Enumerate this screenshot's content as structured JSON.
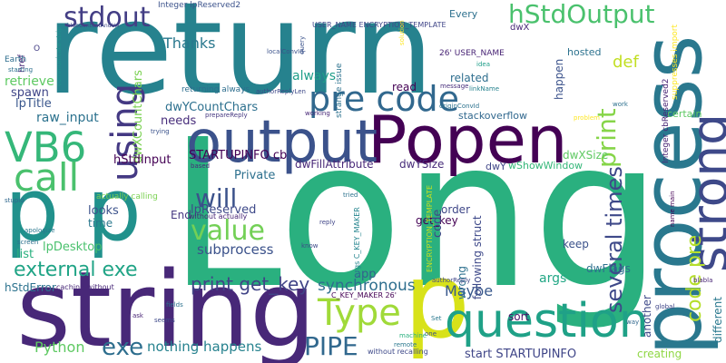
{
  "words": [
    {
      "text": "return",
      "color": "#26828e"
    },
    {
      "text": "Long",
      "color": "#2ab07f"
    },
    {
      "text": "string",
      "color": "#482878"
    },
    {
      "text": "process",
      "color": "#2a788e"
    },
    {
      "text": "Popen",
      "color": "#440154"
    },
    {
      "text": "output",
      "color": "#3b528b"
    },
    {
      "text": "strong",
      "color": "#3e4989"
    },
    {
      "text": "p p",
      "color": "#21918c"
    },
    {
      "text": "p",
      "color": "#d8e219"
    },
    {
      "text": "question",
      "color": "#1fa187"
    },
    {
      "text": "pre code",
      "color": "#31688e"
    },
    {
      "text": "VB6",
      "color": "#35b779"
    },
    {
      "text": "call",
      "color": "#4ac16d"
    },
    {
      "text": "using",
      "color": "#443983"
    },
    {
      "text": "stdout",
      "color": "#433e85"
    },
    {
      "text": "hStdOutput",
      "color": "#4ac16d"
    },
    {
      "text": "Type",
      "color": "#a0da39"
    },
    {
      "text": "value",
      "color": "#73d056"
    },
    {
      "text": "will",
      "color": "#3b528b"
    },
    {
      "text": "PIPE",
      "color": "#31688e"
    },
    {
      "text": "external exe",
      "color": "#20a486"
    },
    {
      "text": "print",
      "color": "#86d549"
    },
    {
      "text": "code pre",
      "color": "#b5de2b"
    },
    {
      "text": "several times",
      "color": "#3e4989"
    },
    {
      "text": "exe",
      "color": "#2e6e8e"
    },
    {
      "text": "print get_key",
      "color": "#414487"
    },
    {
      "text": "Python",
      "color": "#5ec962"
    },
    {
      "text": "nothing happens",
      "color": "#26828e"
    },
    {
      "text": "synchronous",
      "color": "#2e6e8e"
    },
    {
      "text": "subprocess",
      "color": "#3b528b"
    },
    {
      "text": "STARTUPINFO cb",
      "color": "#440154"
    },
    {
      "text": "start STARTUPINFO",
      "color": "#404688"
    },
    {
      "text": "Maybe",
      "color": "#38588c"
    },
    {
      "text": "Thanks",
      "color": "#2a788e"
    },
    {
      "text": "def",
      "color": "#c2df23"
    },
    {
      "text": "app",
      "color": "#34618d"
    },
    {
      "text": "always",
      "color": "#1f9e89"
    },
    {
      "text": "dwYCountChars",
      "color": "#2d708e"
    },
    {
      "text": "dwXCountChars",
      "color": "#7ad151"
    },
    {
      "text": "raw_input",
      "color": "#2c728e"
    },
    {
      "text": "retrieve",
      "color": "#5ec962"
    },
    {
      "text": "spawn",
      "color": "#404688"
    },
    {
      "text": "lpTitle",
      "color": "#39568c"
    },
    {
      "text": "hStdInput",
      "color": "#440154"
    },
    {
      "text": "Private",
      "color": "#2d708e"
    },
    {
      "text": "lpReserved",
      "color": "#3e4989"
    },
    {
      "text": "dwFillAttribute",
      "color": "#482878"
    },
    {
      "text": "dwYSize",
      "color": "#472c7a"
    },
    {
      "text": "dwXSize",
      "color": "#5ec962"
    },
    {
      "text": "wShowWindow",
      "color": "#35b779"
    },
    {
      "text": "dwY",
      "color": "#404688"
    },
    {
      "text": "read",
      "color": "#440154"
    },
    {
      "text": "related",
      "color": "#2e6e8e"
    },
    {
      "text": "stackoverflow",
      "color": "#31688e"
    },
    {
      "text": "needs",
      "color": "#472d7b"
    },
    {
      "text": "looks",
      "color": "#3b528b"
    },
    {
      "text": "time",
      "color": "#2a788e"
    },
    {
      "text": "list",
      "color": "#2ab07f"
    },
    {
      "text": "lpDesktop",
      "color": "#4ac16d"
    },
    {
      "text": "hStdError",
      "color": "#2c728e"
    },
    {
      "text": "End",
      "color": "#453781"
    },
    {
      "text": "get_key",
      "color": "#440154"
    },
    {
      "text": "order",
      "color": "#3f4788"
    },
    {
      "text": "keep",
      "color": "#3b528b"
    },
    {
      "text": "dwFlags",
      "color": "#2d708e"
    },
    {
      "text": "args",
      "color": "#22a785"
    },
    {
      "text": "sort",
      "color": "#481769"
    },
    {
      "text": "creating",
      "color": "#8fd744"
    },
    {
      "text": "happen",
      "color": "#3b528b"
    },
    {
      "text": "another",
      "color": "#3e4989"
    },
    {
      "text": "different",
      "color": "#2a788e"
    },
    {
      "text": "wrong",
      "color": "#2d708e"
    },
    {
      "text": "following struct",
      "color": "#3e4989"
    },
    {
      "text": "code",
      "color": "#414487"
    },
    {
      "text": "Every",
      "color": "#2d708e"
    },
    {
      "text": "certain",
      "color": "#5ec962"
    },
    {
      "text": "hosted",
      "color": "#2c728e"
    },
    {
      "text": "dwX",
      "color": "#482878"
    },
    {
      "text": "26' USER_NAME",
      "color": "#482475"
    },
    {
      "text": "USER_NAME ENCRYPTION_TEMPLATE",
      "color": "#404688"
    },
    {
      "text": "Integer lpReserved2",
      "color": "#3b528b"
    },
    {
      "text": "Integer cbReserved2",
      "color": "#482475"
    },
    {
      "text": "href",
      "color": "#482475"
    },
    {
      "text": "Earth",
      "color": "#2e6e8e"
    },
    {
      "text": "O",
      "color": "#433e85"
    },
    {
      "text": "strange issue",
      "color": "#2c728e"
    },
    {
      "text": "returning always",
      "color": "#2e6e8e"
    },
    {
      "text": "actually calling",
      "color": "#7ad151"
    },
    {
      "text": "without actually",
      "color": "#482475"
    },
    {
      "text": "caching without",
      "color": "#482878"
    },
    {
      "text": "without recalling",
      "color": "#3e4989"
    },
    {
      "text": "args C_KEY_MAKER",
      "color": "#25848e"
    },
    {
      "text": "C_KEY_MAKER 26'",
      "color": "#440154"
    },
    {
      "text": "ENCRYPTION_TEMPLATE",
      "color": "#c2df23"
    },
    {
      "text": "suppresses import",
      "color": "#fde725"
    },
    {
      "text": "localConvId",
      "color": "#3b528b"
    },
    {
      "text": "originConvId",
      "color": "#2c728e"
    },
    {
      "text": "authorReplyLen",
      "color": "#3e4989"
    },
    {
      "text": "prepareReply",
      "color": "#453781"
    },
    {
      "text": "authorReply",
      "color": "#404688"
    },
    {
      "text": "reply",
      "color": "#404688"
    },
    {
      "text": "apologize",
      "color": "#2a788e"
    },
    {
      "text": "stupid",
      "color": "#31688e"
    },
    {
      "text": "starting",
      "color": "#2d708e"
    },
    {
      "text": "communicate strip",
      "color": "#21918c"
    },
    {
      "text": "trying",
      "color": "#3b528b"
    },
    {
      "text": "working",
      "color": "#482878"
    },
    {
      "text": "blabla",
      "color": "#482475"
    },
    {
      "text": "name main",
      "color": "#440154"
    },
    {
      "text": "global",
      "color": "#404688"
    },
    {
      "text": "way",
      "color": "#31688e"
    },
    {
      "text": "seems",
      "color": "#3e4989"
    },
    {
      "text": "fields",
      "color": "#2c728e"
    },
    {
      "text": "Set",
      "color": "#2a788e"
    },
    {
      "text": "one",
      "color": "#3b528b"
    },
    {
      "text": "screen",
      "color": "#2d708e"
    },
    {
      "text": "know",
      "color": "#3e4989"
    },
    {
      "text": "tried",
      "color": "#2c728e"
    },
    {
      "text": "based",
      "color": "#482878"
    },
    {
      "text": "ask",
      "color": "#482475"
    },
    {
      "text": "message",
      "color": "#472d7b"
    },
    {
      "text": "solution",
      "color": "#fde725"
    },
    {
      "text": "idea",
      "color": "#1f9e89"
    },
    {
      "text": "query",
      "color": "#3b528b"
    },
    {
      "text": "linkName",
      "color": "#26828e"
    },
    {
      "text": "problem",
      "color": "#fde725"
    },
    {
      "text": "work",
      "color": "#2d708e"
    },
    {
      "text": "machine",
      "color": "#2ab07f"
    },
    {
      "text": "remote",
      "color": "#2a788e"
    },
    {
      "text": "blobContentAndUrl",
      "color": "#3e4989"
    }
  ]
}
